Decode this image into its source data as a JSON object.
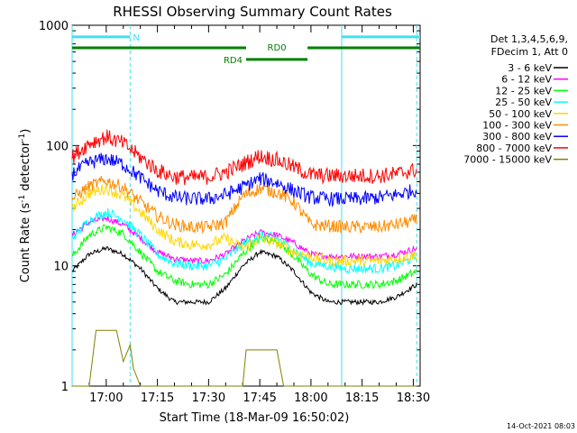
{
  "chart_data": {
    "type": "line",
    "title": "RHESSI Observing Summary Count Rates",
    "xlabel": "Start Time (18-Mar-09 16:50:02)",
    "ylabel": "Count Rate (s⁻¹ detector⁻¹)",
    "ylabel_parts": [
      "Count Rate (s",
      "-1",
      " detector",
      "-1",
      ")"
    ],
    "x_start": "16:50:02",
    "xlim": [
      "16:50",
      "18:32"
    ],
    "x_ticks": [
      "17:00",
      "17:15",
      "17:30",
      "17:45",
      "18:00",
      "18:15",
      "18:30"
    ],
    "y_scale": "log",
    "ylim": [
      1,
      1000
    ],
    "y_ticks": [
      "1",
      "10",
      "100",
      "1000"
    ],
    "info_lines": [
      "Det 1,3,4,5,6,9,",
      "FDecim 1, Att 0"
    ],
    "footer_date": "14-Oct-2021 08:03",
    "flag_bars": [
      {
        "label": "N",
        "color": "#40e0f0",
        "y": 800,
        "segments": [
          [
            "16:50",
            "17:07"
          ],
          [
            "18:09",
            "18:32"
          ]
        ]
      },
      {
        "label": "RD0",
        "color": "#007f00",
        "y": 650,
        "segments": [
          [
            "16:50",
            "17:41"
          ],
          [
            "17:59",
            "18:32"
          ]
        ]
      },
      {
        "label": "RD4",
        "color": "#007f00",
        "y": 520,
        "segments": [
          [
            "17:41",
            "17:59"
          ]
        ]
      }
    ],
    "vertical_lines": [
      {
        "time": "16:50",
        "color": "#40e0f0",
        "style": "solid"
      },
      {
        "time": "17:07",
        "color": "#40e0f0",
        "style": "dashed"
      },
      {
        "time": "18:09",
        "color": "#40e0f0",
        "style": "solid"
      },
      {
        "time": "18:31",
        "color": "#40e0f0",
        "style": "dashed"
      }
    ],
    "series": [
      {
        "name": "3 - 6 keV",
        "color": "#000000",
        "x": [
          "16:50",
          "16:55",
          "17:00",
          "17:05",
          "17:10",
          "17:15",
          "17:20",
          "17:25",
          "17:30",
          "17:35",
          "17:40",
          "17:45",
          "17:50",
          "17:55",
          "18:00",
          "18:05",
          "18:10",
          "18:15",
          "18:20",
          "18:25",
          "18:31"
        ],
        "y": [
          9,
          12.5,
          14,
          12.5,
          9.5,
          6.5,
          5,
          5,
          5,
          6.5,
          10,
          13,
          12,
          9,
          6,
          5,
          5,
          5,
          5,
          5.5,
          7
        ]
      },
      {
        "name": "6 - 12 keV",
        "color": "#ff00ff",
        "x": [
          "16:50",
          "16:55",
          "17:00",
          "17:05",
          "17:10",
          "17:15",
          "17:20",
          "17:25",
          "17:30",
          "17:35",
          "17:40",
          "17:45",
          "17:50",
          "17:55",
          "18:00",
          "18:05",
          "18:10",
          "18:15",
          "18:20",
          "18:25",
          "18:31"
        ],
        "y": [
          18,
          23,
          25,
          22,
          17,
          13,
          11.5,
          11,
          11,
          12.5,
          16,
          19,
          18,
          15.5,
          12.5,
          12,
          12,
          12,
          12,
          12.5,
          14
        ]
      },
      {
        "name": "12 - 25 keV",
        "color": "#00ff00",
        "x": [
          "16:50",
          "16:55",
          "17:00",
          "17:05",
          "17:10",
          "17:15",
          "17:20",
          "17:25",
          "17:30",
          "17:35",
          "17:40",
          "17:45",
          "17:50",
          "17:55",
          "18:00",
          "18:05",
          "18:10",
          "18:15",
          "18:20",
          "18:25",
          "18:31"
        ],
        "y": [
          12,
          18,
          21,
          18.5,
          13,
          9,
          7.5,
          7,
          7,
          8.5,
          12.5,
          17,
          16,
          12,
          8.5,
          7,
          7,
          7,
          7,
          7.5,
          9
        ]
      },
      {
        "name": "25 - 50 keV",
        "color": "#00ffff",
        "x": [
          "16:50",
          "16:55",
          "17:00",
          "17:05",
          "17:10",
          "17:15",
          "17:20",
          "17:25",
          "17:30",
          "17:35",
          "17:40",
          "17:45",
          "17:50",
          "17:55",
          "18:00",
          "18:05",
          "18:10",
          "18:15",
          "18:20",
          "18:25",
          "18:31"
        ],
        "y": [
          17,
          24,
          28,
          24.5,
          18,
          12.5,
          10.5,
          10,
          10,
          11.5,
          15,
          18,
          17,
          13.5,
          10.5,
          10,
          9.5,
          9.5,
          9.5,
          10,
          12
        ]
      },
      {
        "name": "50 - 100 keV",
        "color": "#ffd700",
        "x": [
          "16:50",
          "16:55",
          "17:00",
          "17:05",
          "17:10",
          "17:15",
          "17:20",
          "17:25",
          "17:30",
          "17:35",
          "17:40",
          "17:45",
          "17:50",
          "17:55",
          "18:00",
          "18:05",
          "18:10",
          "18:15",
          "18:20",
          "18:25",
          "18:31"
        ],
        "y": [
          30,
          40,
          44,
          38,
          28,
          20,
          16,
          15,
          15,
          17,
          14,
          17,
          15.5,
          13,
          12,
          11,
          11,
          11,
          11,
          11.5,
          12.5
        ]
      },
      {
        "name": "100 - 300 keV",
        "color": "#ff8c00",
        "x": [
          "16:50",
          "16:55",
          "17:00",
          "17:05",
          "17:10",
          "17:15",
          "17:20",
          "17:25",
          "17:30",
          "17:35",
          "17:40",
          "17:45",
          "17:50",
          "17:55",
          "18:00",
          "18:05",
          "18:10",
          "18:15",
          "18:20",
          "18:25",
          "18:31"
        ],
        "y": [
          36,
          46,
          51,
          45,
          34,
          26,
          22,
          21,
          21,
          23,
          38,
          44,
          41,
          34,
          22,
          21.5,
          21,
          21,
          21,
          22,
          24
        ]
      },
      {
        "name": "300 - 800 keV",
        "color": "#0000ff",
        "x": [
          "16:50",
          "16:55",
          "17:00",
          "17:05",
          "17:10",
          "17:15",
          "17:20",
          "17:25",
          "17:30",
          "17:35",
          "17:40",
          "17:45",
          "17:50",
          "17:55",
          "18:00",
          "18:05",
          "18:10",
          "18:15",
          "18:20",
          "18:25",
          "18:31"
        ],
        "y": [
          58,
          72,
          78,
          70,
          54,
          42,
          37,
          36,
          36,
          39,
          45,
          53,
          49,
          42,
          37,
          36,
          36,
          36,
          37,
          39,
          43
        ]
      },
      {
        "name": "800 - 7000 keV",
        "color": "#ff0000",
        "x": [
          "16:50",
          "16:55",
          "17:00",
          "17:05",
          "17:10",
          "17:15",
          "17:20",
          "17:25",
          "17:30",
          "17:35",
          "17:40",
          "17:45",
          "17:50",
          "17:55",
          "18:00",
          "18:05",
          "18:10",
          "18:15",
          "18:20",
          "18:25",
          "18:31"
        ],
        "y": [
          80,
          105,
          118,
          104,
          80,
          62,
          55,
          54,
          55,
          60,
          70,
          82,
          76,
          66,
          57,
          56,
          56,
          56,
          56,
          58,
          63
        ]
      },
      {
        "name": "7000 - 15000 keV",
        "color": "#808000",
        "x": [
          "16:50",
          "16:55",
          "16:57",
          "17:03",
          "17:05",
          "17:07",
          "17:08",
          "17:10",
          "17:12",
          "17:40",
          "17:41",
          "17:50",
          "17:52",
          "17:55",
          "18:31"
        ],
        "y": [
          1,
          1,
          2.9,
          2.9,
          1.6,
          2.2,
          1.4,
          1,
          1,
          1,
          2.0,
          2.0,
          1,
          1,
          1
        ]
      }
    ]
  }
}
